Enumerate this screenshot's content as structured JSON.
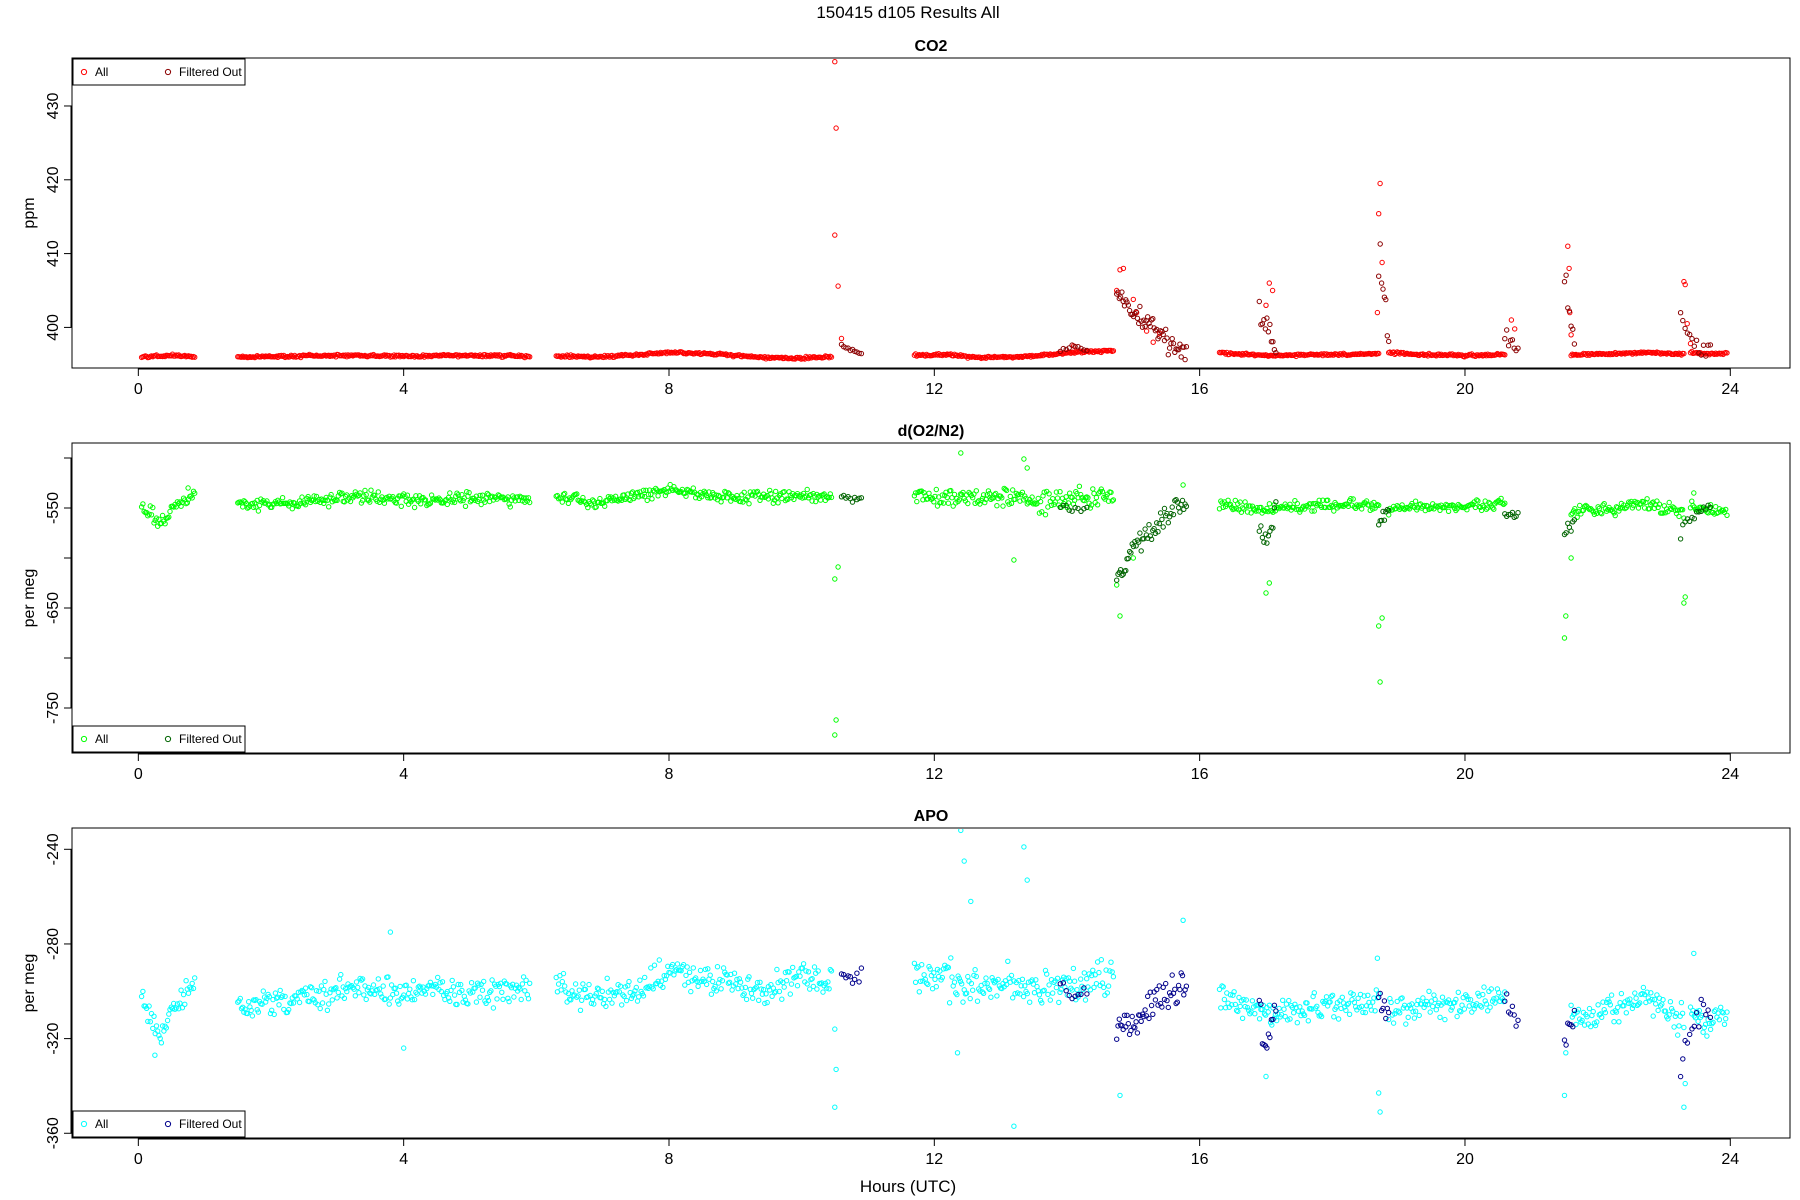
{
  "figure": {
    "main_title": "150415   d105   Results All",
    "xlabel": "Hours (UTC)"
  },
  "chart_data": [
    {
      "type": "scatter",
      "title": "CO2",
      "ylabel": "ppm",
      "xlim": [
        -1.0,
        24.9
      ],
      "ylim": [
        394.5,
        436.5
      ],
      "xticks": [
        0,
        4,
        8,
        12,
        16,
        20,
        24
      ],
      "yticks": [
        400,
        410,
        420,
        430
      ],
      "legend": {
        "placement": "top-left",
        "entries": [
          "All",
          "Filtered Out"
        ]
      },
      "colors": {
        "all": "#ff0000",
        "filtered": "#8b0000"
      },
      "segments": [
        {
          "start": 0.05,
          "end": 0.85,
          "base": [
            396.0,
            396.2,
            396.1
          ],
          "noise": 0.15
        },
        {
          "start": 1.5,
          "end": 5.9,
          "base": [
            396.0,
            396.1,
            396.2,
            396.1,
            396.2,
            396.1
          ],
          "noise": 0.15
        },
        {
          "start": 6.3,
          "end": 10.45,
          "base": [
            396.1,
            396.0,
            396.3,
            396.6,
            396.4,
            396.0,
            395.8,
            396.0
          ],
          "noise": 0.15
        },
        {
          "start": 11.7,
          "end": 14.7,
          "base": [
            396.2,
            396.3,
            395.9,
            396.0,
            396.3,
            396.7,
            396.8
          ],
          "noise": 0.15
        },
        {
          "start": 16.3,
          "end": 18.7,
          "base": [
            396.5,
            396.2,
            396.3,
            396.4
          ],
          "noise": 0.15
        },
        {
          "start": 18.85,
          "end": 20.6,
          "base": [
            396.6,
            396.3,
            396.2,
            396.3
          ],
          "noise": 0.15
        },
        {
          "start": 21.6,
          "end": 23.3,
          "base": [
            396.3,
            396.4,
            396.6,
            396.4
          ],
          "noise": 0.15
        },
        {
          "start": 23.4,
          "end": 23.95,
          "base": [
            396.6,
            396.4,
            396.5
          ],
          "noise": 0.15
        }
      ],
      "filtered_segments": [
        {
          "start": 10.6,
          "end": 10.9,
          "base": [
            397.5,
            396.8,
            396.5
          ],
          "noise": 0.3,
          "count": 10
        },
        {
          "start": 13.9,
          "end": 14.3,
          "base": [
            396.8,
            397.5,
            396.8
          ],
          "noise": 0.3,
          "count": 10
        },
        {
          "start": 14.75,
          "end": 15.8,
          "base": [
            405.0,
            402.0,
            400.0,
            398.0,
            396.8
          ],
          "noise": 2.0,
          "count": 55
        },
        {
          "start": 16.9,
          "end": 17.15,
          "base": [
            402.0,
            399.0,
            396.8
          ],
          "noise": 2.5,
          "count": 12
        },
        {
          "start": 18.7,
          "end": 18.85,
          "base": [
            410.0,
            400.0
          ],
          "noise": 5.0,
          "count": 8
        },
        {
          "start": 20.6,
          "end": 20.8,
          "base": [
            399.0,
            396.8
          ],
          "noise": 1.5,
          "count": 8
        },
        {
          "start": 21.5,
          "end": 21.65,
          "base": [
            408.0,
            398.0
          ],
          "noise": 3.0,
          "count": 7
        },
        {
          "start": 23.25,
          "end": 23.7,
          "base": [
            403.0,
            398.0,
            397.0,
            396.8
          ],
          "noise": 1.5,
          "count": 14
        }
      ],
      "all_points": [
        [
          10.5,
          436.0
        ],
        [
          10.52,
          427.0
        ],
        [
          10.5,
          412.5
        ],
        [
          10.55,
          405.6
        ],
        [
          10.6,
          398.5
        ],
        [
          14.8,
          407.8
        ],
        [
          14.85,
          408.0
        ],
        [
          14.75,
          405.0
        ],
        [
          15.0,
          403.8
        ],
        [
          15.05,
          402.0
        ],
        [
          15.2,
          399.5
        ],
        [
          15.3,
          398.0
        ],
        [
          15.4,
          399.2
        ],
        [
          17.05,
          406.0
        ],
        [
          17.1,
          405.0
        ],
        [
          17.0,
          403.0
        ],
        [
          18.72,
          419.5
        ],
        [
          18.7,
          415.4
        ],
        [
          18.75,
          408.8
        ],
        [
          18.68,
          402.0
        ],
        [
          21.55,
          411.0
        ],
        [
          21.57,
          408.0
        ],
        [
          21.58,
          402.0
        ],
        [
          21.6,
          399.0
        ],
        [
          23.3,
          406.2
        ],
        [
          23.32,
          405.8
        ],
        [
          23.35,
          400.5
        ],
        [
          23.4,
          397.8
        ],
        [
          20.7,
          401.0
        ],
        [
          20.75,
          399.8
        ],
        [
          14.1,
          397.5
        ]
      ]
    },
    {
      "type": "scatter",
      "title": "d(O2/N2)",
      "ylabel": "per meg",
      "xlim": [
        -1.0,
        24.9
      ],
      "ylim": [
        -795,
        -485
      ],
      "xticks": [
        0,
        4,
        8,
        12,
        16,
        20,
        24
      ],
      "yticks": [
        -550,
        -650,
        -750
      ],
      "extra_tick_marks": [
        -500,
        -600,
        -700
      ],
      "legend": {
        "placement": "bottom-left",
        "entries": [
          "All",
          "Filtered Out"
        ]
      },
      "colors": {
        "all": "#00ff00",
        "filtered": "#006400"
      },
      "segments": [
        {
          "start": 0.05,
          "end": 0.85,
          "base": [
            -548,
            -562,
            -548,
            -535
          ],
          "noise": 8
        },
        {
          "start": 1.5,
          "end": 5.9,
          "base": [
            -548,
            -545,
            -538,
            -543,
            -540,
            -541
          ],
          "noise": 6
        },
        {
          "start": 6.3,
          "end": 10.45,
          "base": [
            -540,
            -545,
            -538,
            -532,
            -538,
            -540,
            -538,
            -540
          ],
          "noise": 6
        },
        {
          "start": 11.7,
          "end": 14.7,
          "base": [
            -536,
            -542,
            -538,
            -540,
            -545,
            -540,
            -538
          ],
          "noise": 9
        },
        {
          "start": 16.3,
          "end": 18.7,
          "base": [
            -546,
            -551,
            -547,
            -548
          ],
          "noise": 5
        },
        {
          "start": 18.85,
          "end": 20.6,
          "base": [
            -552,
            -549,
            -548,
            -545
          ],
          "noise": 5
        },
        {
          "start": 21.6,
          "end": 23.3,
          "base": [
            -553,
            -552,
            -545,
            -556
          ],
          "noise": 6
        },
        {
          "start": 23.4,
          "end": 23.95,
          "base": [
            -550,
            -553,
            -550
          ],
          "noise": 6
        }
      ],
      "filtered_segments": [
        {
          "start": 10.6,
          "end": 10.9,
          "base": [
            -540,
            -543,
            -541
          ],
          "noise": 5,
          "count": 10
        },
        {
          "start": 13.9,
          "end": 14.3,
          "base": [
            -548,
            -553,
            -550
          ],
          "noise": 4,
          "count": 10
        },
        {
          "start": 14.75,
          "end": 15.8,
          "base": [
            -620,
            -590,
            -570,
            -555,
            -545
          ],
          "noise": 12,
          "count": 55
        },
        {
          "start": 16.9,
          "end": 17.15,
          "base": [
            -565,
            -580,
            -550
          ],
          "noise": 12,
          "count": 12
        },
        {
          "start": 18.7,
          "end": 18.85,
          "base": [
            -565,
            -550
          ],
          "noise": 8,
          "count": 8
        },
        {
          "start": 20.6,
          "end": 20.8,
          "base": [
            -555,
            -560
          ],
          "noise": 6,
          "count": 8
        },
        {
          "start": 21.5,
          "end": 21.65,
          "base": [
            -580,
            -560
          ],
          "noise": 10,
          "count": 7
        },
        {
          "start": 23.25,
          "end": 23.7,
          "base": [
            -575,
            -560,
            -555,
            -550
          ],
          "noise": 8,
          "count": 14
        }
      ],
      "all_points": [
        [
          10.5,
          -777
        ],
        [
          10.52,
          -762
        ],
        [
          10.5,
          -621
        ],
        [
          10.55,
          -609
        ],
        [
          12.4,
          -495
        ],
        [
          13.35,
          -501
        ],
        [
          13.4,
          -510
        ],
        [
          13.2,
          -602
        ],
        [
          14.8,
          -658
        ],
        [
          14.75,
          -627
        ],
        [
          15.0,
          -600
        ],
        [
          17.0,
          -635
        ],
        [
          17.05,
          -625
        ],
        [
          18.72,
          -724
        ],
        [
          18.7,
          -668
        ],
        [
          18.75,
          -660
        ],
        [
          21.5,
          -680
        ],
        [
          21.52,
          -658
        ],
        [
          21.6,
          -600
        ],
        [
          23.3,
          -645
        ],
        [
          23.32,
          -639
        ],
        [
          15.75,
          -527
        ],
        [
          23.45,
          -535
        ],
        [
          0.75,
          -530
        ]
      ]
    },
    {
      "type": "scatter",
      "title": "APO",
      "ylabel": "per meg",
      "xlim": [
        -1.0,
        24.9
      ],
      "ylim": [
        -362,
        -231
      ],
      "xticks": [
        0,
        4,
        8,
        12,
        16,
        20,
        24
      ],
      "yticks": [
        -240,
        -280,
        -320,
        -360
      ],
      "legend": {
        "placement": "bottom-left",
        "entries": [
          "All",
          "Filtered Out"
        ]
      },
      "colors": {
        "all": "#00ffff",
        "filtered": "#00008b"
      },
      "segments": [
        {
          "start": 0.05,
          "end": 0.85,
          "base": [
            -305,
            -318,
            -305,
            -295
          ],
          "noise": 6
        },
        {
          "start": 1.5,
          "end": 5.9,
          "base": [
            -306,
            -304,
            -298,
            -301,
            -300,
            -300
          ],
          "noise": 6
        },
        {
          "start": 6.3,
          "end": 10.45,
          "base": [
            -298,
            -302,
            -300,
            -292,
            -295,
            -300,
            -295,
            -294
          ],
          "noise": 6
        },
        {
          "start": 11.7,
          "end": 14.7,
          "base": [
            -292,
            -296,
            -297,
            -298,
            -300,
            -296,
            -296
          ],
          "noise": 8
        },
        {
          "start": 16.3,
          "end": 18.7,
          "base": [
            -303,
            -310,
            -306,
            -304
          ],
          "noise": 5
        },
        {
          "start": 18.85,
          "end": 20.6,
          "base": [
            -309,
            -306,
            -305,
            -302
          ],
          "noise": 5
        },
        {
          "start": 21.6,
          "end": 23.3,
          "base": [
            -310,
            -309,
            -303,
            -313
          ],
          "noise": 6
        },
        {
          "start": 23.4,
          "end": 23.95,
          "base": [
            -310,
            -312,
            -307
          ],
          "noise": 6
        }
      ],
      "filtered_segments": [
        {
          "start": 10.6,
          "end": 10.9,
          "base": [
            -292,
            -295,
            -293
          ],
          "noise": 3,
          "count": 10
        },
        {
          "start": 13.9,
          "end": 14.3,
          "base": [
            -297,
            -302,
            -300
          ],
          "noise": 3,
          "count": 10
        },
        {
          "start": 14.75,
          "end": 15.8,
          "base": [
            -315,
            -312,
            -305,
            -300,
            -298
          ],
          "noise": 8,
          "count": 55
        },
        {
          "start": 16.9,
          "end": 17.15,
          "base": [
            -310,
            -325,
            -308
          ],
          "noise": 8,
          "count": 12
        },
        {
          "start": 18.7,
          "end": 18.85,
          "base": [
            -305,
            -310
          ],
          "noise": 6,
          "count": 8
        },
        {
          "start": 20.6,
          "end": 20.8,
          "base": [
            -303,
            -315
          ],
          "noise": 6,
          "count": 8
        },
        {
          "start": 21.5,
          "end": 21.65,
          "base": [
            -320,
            -310
          ],
          "noise": 8,
          "count": 7
        },
        {
          "start": 23.25,
          "end": 23.7,
          "base": [
            -330,
            -318,
            -310,
            -308
          ],
          "noise": 8,
          "count": 14
        }
      ],
      "all_points": [
        [
          10.5,
          -349
        ],
        [
          10.52,
          -333
        ],
        [
          10.5,
          -316
        ],
        [
          12.4,
          -232
        ],
        [
          12.45,
          -245
        ],
        [
          12.55,
          -262
        ],
        [
          13.35,
          -239
        ],
        [
          13.4,
          -253
        ],
        [
          13.2,
          -357
        ],
        [
          12.35,
          -326
        ],
        [
          14.8,
          -344
        ],
        [
          17.0,
          -336
        ],
        [
          18.72,
          -351
        ],
        [
          18.7,
          -343
        ],
        [
          18.68,
          -286
        ],
        [
          21.5,
          -344
        ],
        [
          21.52,
          -326
        ],
        [
          23.3,
          -349
        ],
        [
          23.32,
          -339
        ],
        [
          23.45,
          -284
        ],
        [
          15.75,
          -270
        ],
        [
          0.25,
          -327
        ],
        [
          3.8,
          -275
        ],
        [
          4.0,
          -324
        ]
      ]
    }
  ]
}
